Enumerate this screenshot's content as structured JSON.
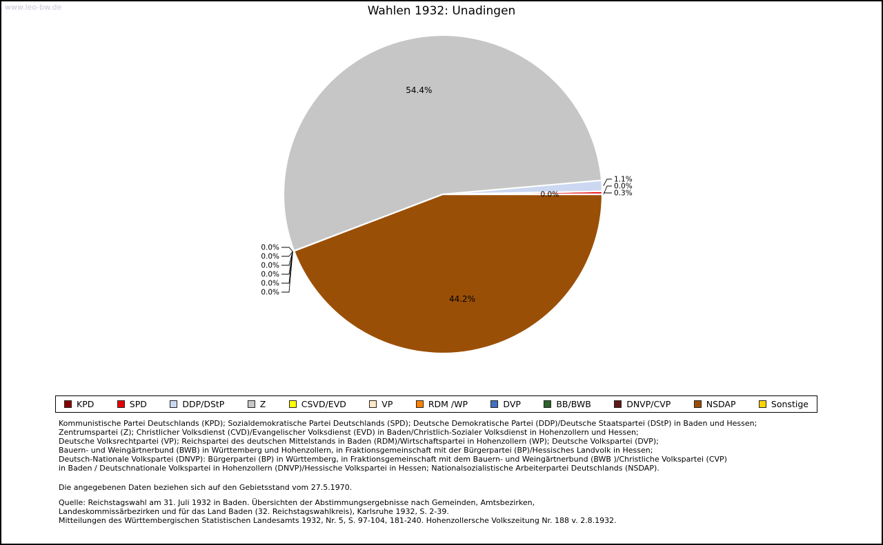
{
  "watermark": "www.leo-bw.de",
  "title": "Wahlen 1932: Unadingen",
  "chart_data": {
    "type": "pie",
    "title": "Wahlen 1932: Unadingen",
    "unit": "percent",
    "start_angle_deg": 0,
    "direction": "counterclockwise",
    "legend_position": "bottom",
    "series": [
      {
        "label": "KPD",
        "value": 0.0,
        "display": "0.0%",
        "color": "#8b0000"
      },
      {
        "label": "SPD",
        "value": 0.3,
        "display": "0.3%",
        "color": "#e60000"
      },
      {
        "label": "DDP/DStP",
        "value": 1.1,
        "display": "1.1%",
        "color": "#ccd8f2"
      },
      {
        "label": "Z",
        "value": 54.4,
        "display": "54.4%",
        "color": "#c6c6c6"
      },
      {
        "label": "CSVD/EVD",
        "value": 0.0,
        "display": "0.0%",
        "color": "#ffff00"
      },
      {
        "label": "VP",
        "value": 0.0,
        "display": "0.0%",
        "color": "#ffe8c8"
      },
      {
        "label": "RDM /WP",
        "value": 0.0,
        "display": "0.0%",
        "color": "#ff8000"
      },
      {
        "label": "DVP",
        "value": 0.0,
        "display": "0.0%",
        "color": "#4070c0"
      },
      {
        "label": "BB/BWB",
        "value": 0.0,
        "display": "0.0%",
        "color": "#2d642d"
      },
      {
        "label": "DNVP/CVP",
        "value": 0.0,
        "display": "0.0%",
        "color": "#601818"
      },
      {
        "label": "NSDAP",
        "value": 44.2,
        "display": "44.2%",
        "color": "#9a4f06"
      },
      {
        "label": "Sonstige",
        "value": 0.0,
        "display": "0.0%",
        "color": "#ffd400"
      }
    ]
  },
  "footnotes": {
    "party_lines": [
      "Kommunistische Partei Deutschlands (KPD); Sozialdemokratische Partei Deutschlands (SPD); Deutsche Demokratische Partei (DDP)/Deutsche Staatspartei (DStP) in Baden und Hessen;",
      "Zentrumspartei (Z); Christlicher Volksdienst (CVD)/Evangelischer Volksdienst (EVD) in Baden/Christlich-Sozialer Volksdienst in Hohenzollern und Hessen;",
      "Deutsche Volksrechtpartei (VP); Reichspartei des deutschen Mittelstands in Baden (RDM)/Wirtschaftspartei in Hohenzollern (WP); Deutsche Volkspartei (DVP);",
      "Bauern- und Weingärtnerbund (BWB) in Württemberg und Hohenzollern, in Fraktionsgemeinschaft mit der Bürgerpartei (BP)/Hessisches Landvolk in Hessen;",
      "Deutsch-Nationale Volkspartei (DNVP): Bürgerpartei (BP) in Württemberg, in Fraktionsgemeinschaft mit dem Bauern- und Weingärtnerbund (BWB )/Christliche Volkspartei (CVP)",
      "in Baden / Deutschnationale Volkspartei in Hohenzollern (DNVP)/Hessische Volkspartei in Hessen; Nationalsozialistische Arbeiterpartei Deutschlands (NSDAP)."
    ],
    "territory_note": "Die angegebenen Daten beziehen sich auf den Gebietsstand vom 27.5.1970.",
    "source_lines": [
      "Quelle: Reichstagswahl am 31. Juli 1932 in Baden. Übersichten der Abstimmungsergebnisse nach Gemeinden, Amtsbezirken,",
      "Landeskommissärbezirken und für das Land Baden (32. Reichstagswahlkreis), Karlsruhe 1932, S. 2-39.",
      "Mitteilungen des Württembergischen Statistischen Landesamts 1932, Nr. 5, S. 97-104, 181-240. Hohenzollersche Volkszeitung Nr. 188 v. 2.8.1932."
    ]
  }
}
